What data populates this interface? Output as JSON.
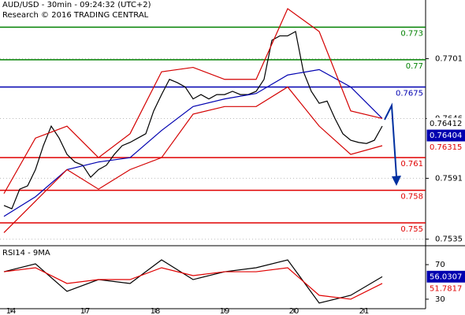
{
  "chart_data": {
    "type": "line",
    "title": "AUD/USD - 30min - 09:24:32 (UTC+2)",
    "subtitle": "Research © 2016 TRADING CENTRAL",
    "x": [
      0,
      1,
      2,
      3,
      4,
      5,
      6,
      7,
      8,
      9,
      10,
      11,
      12,
      13,
      14,
      15,
      16,
      17,
      18,
      19,
      20,
      21,
      22,
      23,
      24,
      25,
      26,
      27,
      28,
      29,
      30,
      31,
      32,
      33,
      34,
      35,
      36,
      37,
      38,
      39,
      40,
      41,
      42,
      43,
      44,
      45,
      46,
      47,
      48
    ],
    "xlim": [
      -0.5,
      53.5
    ],
    "xticks": [
      {
        "value": 0.9,
        "label": "14"
      },
      {
        "value": 10.3,
        "label": "17"
      },
      {
        "value": 19.2,
        "label": "18"
      },
      {
        "value": 28,
        "label": "19"
      },
      {
        "value": 36.8,
        "label": "20"
      },
      {
        "value": 45.7,
        "label": "21"
      }
    ],
    "ylim": [
      0.7529,
      0.7755
    ],
    "yticks": [
      0.7535,
      0.7591,
      0.7646,
      0.7701
    ],
    "series": [
      {
        "color": "#000000",
        "values": [
          0.7566,
          0.7563,
          0.7581,
          0.7584,
          0.7599,
          0.7621,
          0.7639,
          0.7628,
          0.7613,
          0.7606,
          0.7603,
          0.7592,
          0.7599,
          0.7603,
          0.7613,
          0.7621,
          0.7624,
          0.7628,
          0.7632,
          0.7653,
          0.7668,
          0.7682,
          0.7679,
          0.7675,
          0.7664,
          0.7668,
          0.7664,
          0.7668,
          0.7668,
          0.7671,
          0.7668,
          0.7668,
          0.7671,
          0.7682,
          0.7718,
          0.7722,
          0.7722,
          0.7726,
          0.7689,
          0.7671,
          0.766,
          0.7662,
          0.7646,
          0.7632,
          0.7626,
          0.7624,
          0.7623,
          0.7626,
          0.7639
        ]
      },
      {
        "color": "#0000b0",
        "x": [
          0,
          4,
          8,
          12,
          16,
          20,
          24,
          28,
          32,
          36,
          40,
          44,
          48
        ],
        "values": [
          0.7556,
          0.7574,
          0.7599,
          0.7606,
          0.761,
          0.7635,
          0.7657,
          0.7664,
          0.7669,
          0.7686,
          0.7691,
          0.7675,
          0.7646
        ]
      },
      {
        "color": "#d40000",
        "x": [
          0,
          4,
          8,
          12,
          16,
          20,
          24,
          28,
          32,
          36,
          40,
          44,
          48
        ],
        "values": [
          0.7577,
          0.7628,
          0.7639,
          0.761,
          0.7632,
          0.7689,
          0.7693,
          0.7682,
          0.7682,
          0.7747,
          0.7726,
          0.7653,
          0.7646
        ]
      },
      {
        "color": "#d40000",
        "x": [
          0,
          4,
          8,
          12,
          16,
          20,
          24,
          28,
          32,
          36,
          40,
          44,
          48
        ],
        "values": [
          0.7541,
          0.757,
          0.7599,
          0.7581,
          0.7599,
          0.761,
          0.765,
          0.7657,
          0.7657,
          0.7675,
          0.7639,
          0.7613,
          0.7621
        ]
      }
    ],
    "levels": [
      {
        "value": 0.773,
        "color": "#008000"
      },
      {
        "value": 0.77,
        "color": "#008000"
      },
      {
        "value": 0.7675,
        "color": "#0000b0"
      },
      {
        "value": 0.761,
        "color": "#e00000"
      },
      {
        "value": 0.758,
        "color": "#e00000"
      },
      {
        "value": 0.755,
        "color": "#e00000"
      }
    ],
    "price_tags": [
      {
        "value": 0.76412,
        "bg": "#ffffff",
        "color": "#000000"
      },
      {
        "value": 0.76404,
        "bg": "#0000b0",
        "color": "#ffffff"
      },
      {
        "value": 0.76315,
        "bg": "#ffffff",
        "color": "#e00000"
      }
    ],
    "rsi": {
      "title": "RSI14 - 9MA",
      "ylim": [
        19,
        91
      ],
      "yticks": [
        30,
        70
      ],
      "series": [
        {
          "color": "#000000",
          "x": [
            0,
            4,
            8,
            12,
            16,
            20,
            24,
            28,
            32,
            36,
            40,
            44,
            48
          ],
          "values": [
            61.8,
            70.9,
            39.1,
            52.7,
            48.2,
            75.5,
            52.7,
            61.8,
            66.4,
            75.5,
            25.5,
            34.5,
            56
          ]
        },
        {
          "color": "#e00000",
          "x": [
            0,
            4,
            8,
            12,
            16,
            20,
            24,
            28,
            32,
            36,
            40,
            44,
            48
          ],
          "values": [
            61.8,
            66.4,
            48.2,
            52.7,
            52.7,
            66.4,
            57.3,
            61.8,
            61.8,
            66.4,
            34.5,
            30,
            48.2
          ]
        }
      ],
      "tags": [
        {
          "value": 56.0307,
          "bg": "#0000b0",
          "color": "#ffffff"
        },
        {
          "value": 51.7817,
          "bg": "#ffffff",
          "color": "#e00000"
        }
      ]
    }
  }
}
